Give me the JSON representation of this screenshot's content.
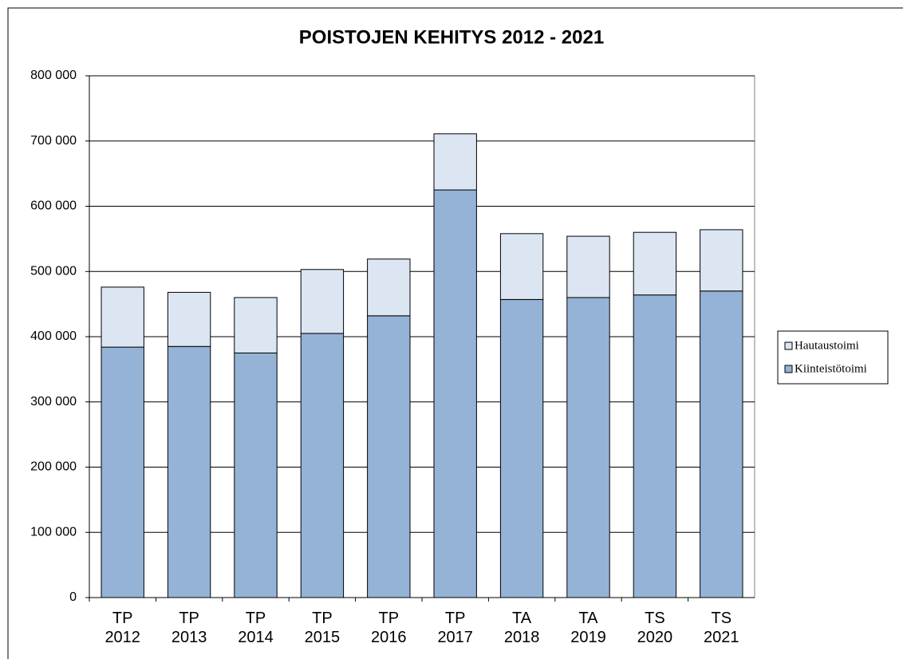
{
  "chart_data": {
    "type": "stacked_bar",
    "title": "POISTOJEN KEHITYS 2012 - 2021",
    "categories": [
      "TP 2012",
      "TP 2013",
      "TP 2014",
      "TP 2015",
      "TP 2016",
      "TP 2017",
      "TA 2018",
      "TA 2019",
      "TS 2020",
      "TS 2021"
    ],
    "series": [
      {
        "name": "Kiinteistötoimi",
        "color": "#95b3d7",
        "values": [
          384000,
          385000,
          375000,
          405000,
          432000,
          625000,
          457000,
          460000,
          464000,
          470000
        ]
      },
      {
        "name": "Hautaustoimi",
        "color": "#dce6f2",
        "values": [
          92000,
          83000,
          85000,
          98000,
          87000,
          86000,
          101000,
          94000,
          96000,
          94000
        ]
      }
    ],
    "ylim": [
      0,
      800000
    ],
    "yticks": [
      0,
      {
        "value": 100000,
        "label": "100 000"
      },
      {
        "value": 200000,
        "label": "200 000"
      },
      {
        "value": 300000,
        "label": "300 000"
      },
      {
        "value": 400000,
        "label": "400 000"
      },
      {
        "value": 500000,
        "label": "500 000"
      },
      {
        "value": 600000,
        "label": "600 000"
      },
      {
        "value": 700000,
        "label": "700 000"
      },
      {
        "value": 800000,
        "label": "800 000"
      }
    ],
    "grid": true,
    "legend": "right"
  }
}
